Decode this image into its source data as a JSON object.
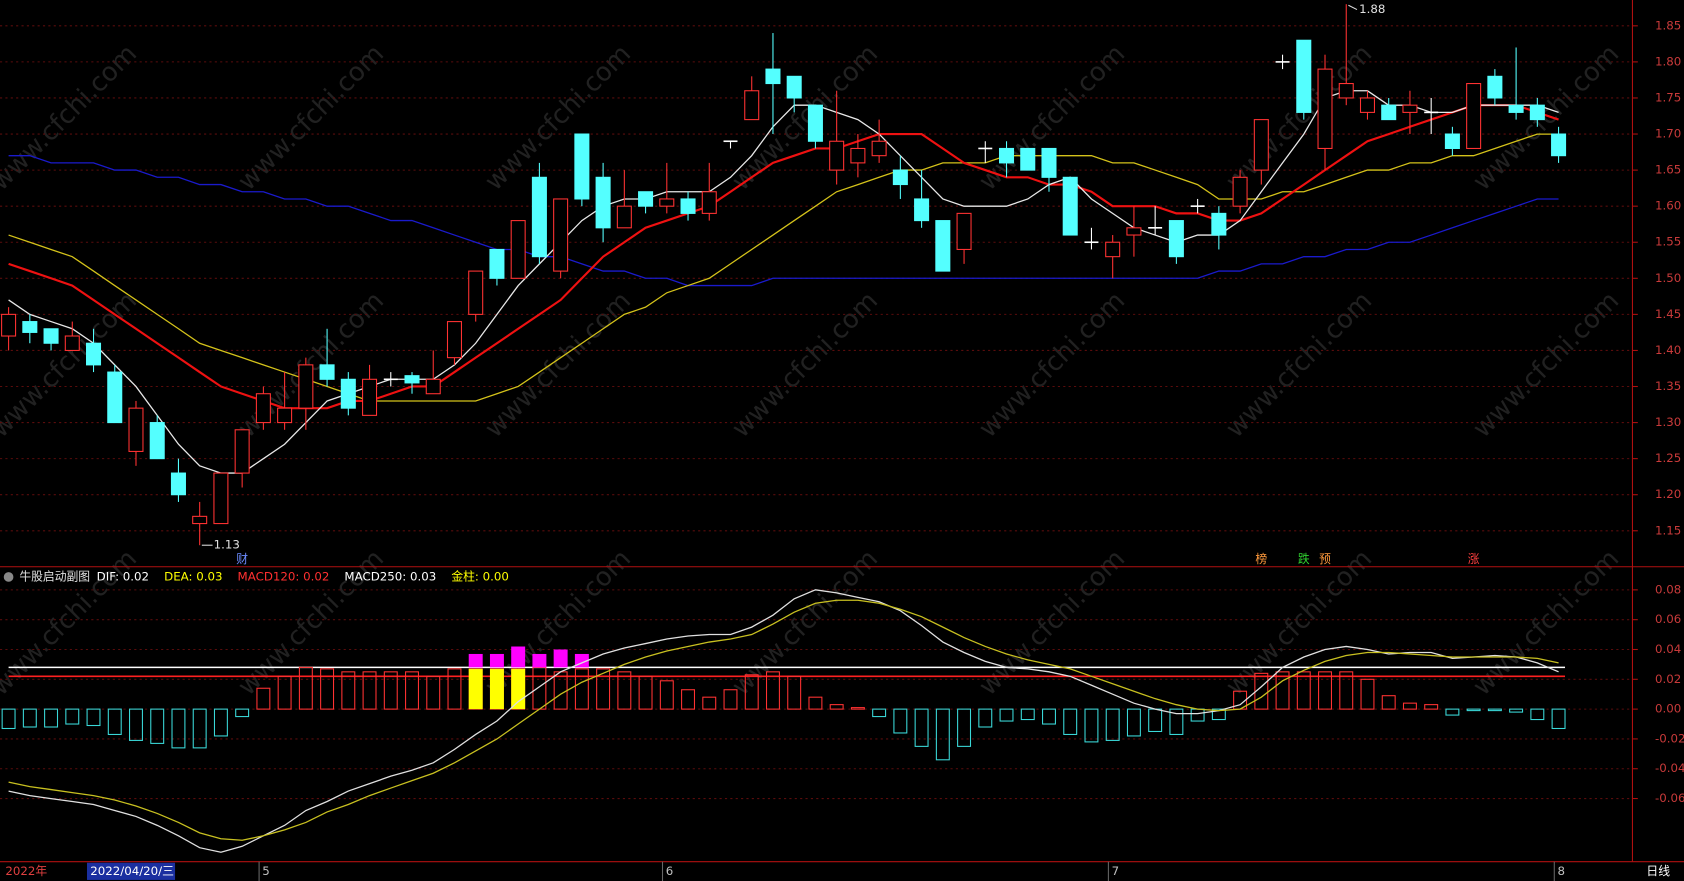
{
  "chart_data": [
    {
      "type": "candlestick",
      "categories": [
        null,
        null,
        null,
        null,
        null,
        null,
        null,
        null,
        null,
        null,
        null,
        null,
        "5",
        null,
        null,
        null,
        null,
        null,
        null,
        null,
        null,
        null,
        null,
        null,
        null,
        null,
        null,
        null,
        null,
        null,
        null,
        "6",
        null,
        null,
        null,
        null,
        null,
        null,
        null,
        null,
        null,
        null,
        null,
        null,
        null,
        null,
        null,
        null,
        null,
        null,
        null,
        null,
        "7",
        null,
        null,
        null,
        null,
        null,
        null,
        null,
        null,
        null,
        null,
        null,
        null,
        null,
        null,
        null,
        null,
        null,
        null,
        null,
        null,
        "8"
      ],
      "open": [
        1.42,
        1.44,
        1.43,
        1.4,
        1.41,
        1.37,
        1.26,
        1.3,
        1.23,
        1.16,
        1.16,
        1.23,
        1.3,
        1.3,
        1.32,
        1.38,
        1.36,
        1.31,
        1.36,
        1.365,
        1.34,
        1.39,
        1.45,
        1.54,
        1.5,
        1.64,
        1.51,
        1.7,
        1.64,
        1.57,
        1.62,
        1.6,
        1.61,
        1.59,
        1.69,
        1.72,
        1.79,
        1.78,
        1.74,
        1.65,
        1.66,
        1.67,
        1.65,
        1.61,
        1.58,
        1.54,
        1.68,
        1.68,
        1.68,
        1.68,
        1.64,
        1.55,
        1.53,
        1.56,
        1.57,
        1.58,
        1.6,
        1.59,
        1.6,
        1.65,
        1.8,
        1.83,
        1.68,
        1.75,
        1.73,
        1.74,
        1.73,
        1.73,
        1.7,
        1.68,
        1.78,
        1.74,
        1.74,
        1.7
      ],
      "high": [
        1.46,
        1.45,
        1.43,
        1.44,
        1.43,
        1.38,
        1.33,
        1.31,
        1.25,
        1.19,
        1.23,
        1.29,
        1.35,
        1.37,
        1.39,
        1.43,
        1.37,
        1.38,
        1.37,
        1.37,
        1.4,
        1.44,
        1.51,
        1.54,
        1.58,
        1.66,
        1.61,
        1.7,
        1.66,
        1.65,
        1.62,
        1.66,
        1.62,
        1.66,
        1.69,
        1.78,
        1.84,
        1.78,
        1.74,
        1.76,
        1.7,
        1.72,
        1.67,
        1.65,
        1.58,
        1.59,
        1.69,
        1.69,
        1.68,
        1.68,
        1.64,
        1.57,
        1.56,
        1.6,
        1.6,
        1.58,
        1.61,
        1.6,
        1.65,
        1.72,
        1.81,
        1.83,
        1.81,
        1.88,
        1.76,
        1.75,
        1.76,
        1.75,
        1.71,
        1.77,
        1.79,
        1.82,
        1.75,
        1.71
      ],
      "low": [
        1.4,
        1.41,
        1.4,
        1.4,
        1.37,
        1.3,
        1.24,
        1.25,
        1.19,
        1.13,
        1.16,
        1.21,
        1.29,
        1.29,
        1.29,
        1.35,
        1.31,
        1.31,
        1.35,
        1.34,
        1.34,
        1.38,
        1.44,
        1.49,
        1.5,
        1.52,
        1.5,
        1.6,
        1.55,
        1.57,
        1.59,
        1.59,
        1.58,
        1.58,
        1.68,
        1.72,
        1.7,
        1.73,
        1.68,
        1.63,
        1.64,
        1.66,
        1.61,
        1.57,
        1.51,
        1.52,
        1.66,
        1.64,
        1.65,
        1.62,
        1.56,
        1.54,
        1.5,
        1.53,
        1.56,
        1.52,
        1.59,
        1.54,
        1.59,
        1.63,
        1.79,
        1.72,
        1.65,
        1.74,
        1.72,
        1.72,
        1.7,
        1.7,
        1.67,
        1.68,
        1.74,
        1.72,
        1.71,
        1.66
      ],
      "close": [
        1.45,
        1.425,
        1.41,
        1.42,
        1.38,
        1.3,
        1.32,
        1.25,
        1.2,
        1.17,
        1.23,
        1.29,
        1.34,
        1.32,
        1.38,
        1.36,
        1.32,
        1.36,
        1.36,
        1.355,
        1.36,
        1.44,
        1.51,
        1.5,
        1.58,
        1.53,
        1.61,
        1.61,
        1.57,
        1.6,
        1.6,
        1.61,
        1.59,
        1.62,
        1.69,
        1.76,
        1.77,
        1.75,
        1.69,
        1.69,
        1.68,
        1.69,
        1.63,
        1.58,
        1.51,
        1.59,
        1.68,
        1.66,
        1.65,
        1.64,
        1.56,
        1.55,
        1.55,
        1.57,
        1.57,
        1.53,
        1.6,
        1.56,
        1.64,
        1.72,
        1.8,
        1.73,
        1.79,
        1.77,
        1.75,
        1.72,
        1.74,
        1.73,
        1.68,
        1.77,
        1.75,
        1.73,
        1.72,
        1.67
      ],
      "up_color": "#ff3232",
      "down_color": "#54ffff",
      "flat_color": "#ffffff",
      "lines": [
        {
          "color": "#1a1acc",
          "values": [
            1.67,
            1.67,
            1.66,
            1.66,
            1.66,
            1.65,
            1.65,
            1.64,
            1.64,
            1.63,
            1.63,
            1.62,
            1.62,
            1.61,
            1.61,
            1.6,
            1.6,
            1.59,
            1.58,
            1.58,
            1.57,
            1.56,
            1.55,
            1.54,
            1.54,
            1.53,
            1.53,
            1.52,
            1.51,
            1.51,
            1.5,
            1.5,
            1.49,
            1.49,
            1.49,
            1.49,
            1.5,
            1.5,
            1.5,
            1.5,
            1.5,
            1.5,
            1.5,
            1.5,
            1.5,
            1.5,
            1.5,
            1.5,
            1.5,
            1.5,
            1.5,
            1.5,
            1.5,
            1.5,
            1.5,
            1.5,
            1.5,
            1.51,
            1.51,
            1.52,
            1.52,
            1.53,
            1.53,
            1.54,
            1.54,
            1.55,
            1.55,
            1.56,
            1.57,
            1.58,
            1.59,
            1.6,
            1.61,
            1.61
          ]
        },
        {
          "color": "#d4c21a",
          "values": [
            1.56,
            1.55,
            1.54,
            1.53,
            1.51,
            1.49,
            1.47,
            1.45,
            1.43,
            1.41,
            1.4,
            1.39,
            1.38,
            1.37,
            1.36,
            1.35,
            1.34,
            1.33,
            1.33,
            1.33,
            1.33,
            1.33,
            1.33,
            1.34,
            1.35,
            1.37,
            1.39,
            1.41,
            1.43,
            1.45,
            1.46,
            1.48,
            1.49,
            1.5,
            1.52,
            1.54,
            1.56,
            1.58,
            1.6,
            1.62,
            1.63,
            1.64,
            1.65,
            1.65,
            1.66,
            1.66,
            1.66,
            1.67,
            1.67,
            1.67,
            1.67,
            1.67,
            1.66,
            1.66,
            1.65,
            1.64,
            1.63,
            1.61,
            1.61,
            1.61,
            1.62,
            1.62,
            1.63,
            1.64,
            1.65,
            1.65,
            1.66,
            1.66,
            1.67,
            1.67,
            1.68,
            1.69,
            1.7,
            1.7
          ]
        },
        {
          "color": "#ee1111",
          "values": [
            1.52,
            1.51,
            1.5,
            1.49,
            1.47,
            1.45,
            1.43,
            1.41,
            1.39,
            1.37,
            1.35,
            1.34,
            1.33,
            1.32,
            1.32,
            1.32,
            1.33,
            1.33,
            1.34,
            1.35,
            1.35,
            1.37,
            1.39,
            1.41,
            1.43,
            1.45,
            1.47,
            1.5,
            1.53,
            1.55,
            1.57,
            1.58,
            1.59,
            1.6,
            1.62,
            1.64,
            1.66,
            1.67,
            1.68,
            1.68,
            1.69,
            1.7,
            1.7,
            1.7,
            1.68,
            1.66,
            1.65,
            1.64,
            1.64,
            1.63,
            1.63,
            1.62,
            1.6,
            1.6,
            1.6,
            1.59,
            1.59,
            1.58,
            1.58,
            1.59,
            1.61,
            1.63,
            1.65,
            1.67,
            1.69,
            1.7,
            1.71,
            1.72,
            1.73,
            1.74,
            1.74,
            1.74,
            1.73,
            1.72
          ],
          "width": 2
        },
        {
          "color": "#e8e8e8",
          "values": [
            1.47,
            1.45,
            1.44,
            1.43,
            1.41,
            1.38,
            1.35,
            1.31,
            1.27,
            1.24,
            1.23,
            1.23,
            1.25,
            1.27,
            1.3,
            1.33,
            1.34,
            1.35,
            1.36,
            1.36,
            1.36,
            1.38,
            1.41,
            1.45,
            1.49,
            1.52,
            1.55,
            1.58,
            1.6,
            1.61,
            1.61,
            1.62,
            1.62,
            1.62,
            1.64,
            1.67,
            1.71,
            1.74,
            1.74,
            1.73,
            1.72,
            1.7,
            1.67,
            1.64,
            1.61,
            1.6,
            1.6,
            1.6,
            1.61,
            1.63,
            1.64,
            1.61,
            1.59,
            1.57,
            1.56,
            1.55,
            1.56,
            1.56,
            1.58,
            1.62,
            1.66,
            1.7,
            1.75,
            1.76,
            1.76,
            1.74,
            1.74,
            1.73,
            1.73,
            1.74,
            1.74,
            1.74,
            1.74,
            1.73
          ]
        }
      ],
      "max_label": 1.88,
      "min_label": 1.13,
      "events": [
        {
          "index": 11,
          "label": "财",
          "color": "#6c8cff"
        },
        {
          "index": 59,
          "label": "榜",
          "color": "#ff9a3c"
        },
        {
          "index": 61,
          "label": "跌",
          "color": "#30d030"
        },
        {
          "index": 62,
          "label": "预",
          "color": "#ff9a3c"
        },
        {
          "index": 69,
          "label": "涨",
          "color": "#ff4040"
        }
      ],
      "ylim": [
        1.1,
        1.88
      ],
      "yticks": [
        1.15,
        {
          "value": 1.2,
          "label": "1.20"
        },
        1.25,
        {
          "value": 1.3,
          "label": "1.30"
        },
        1.35,
        {
          "value": 1.4,
          "label": "1.40"
        },
        1.45,
        {
          "value": 1.5,
          "label": "1.50"
        },
        1.55,
        {
          "value": 1.6,
          "label": "1.60"
        },
        1.65,
        {
          "value": 1.7,
          "label": "1.70"
        },
        1.75,
        {
          "value": 1.8,
          "label": "1.80"
        },
        1.85
      ],
      "grid": true
    },
    {
      "type": "macd",
      "title": "牛股启动副图",
      "indicators": [
        {
          "label": "DIF: 0.02",
          "color": "#ffffff"
        },
        {
          "label": "DEA: 0.03",
          "color": "#ffff00"
        },
        {
          "label": "MACD120: 0.02",
          "color": "#ff3030"
        },
        {
          "label": "MACD250: 0.03",
          "color": "#ffffff"
        },
        {
          "label": "金柱: 0.00",
          "color": "#ffff00"
        }
      ],
      "bars": [
        -0.013,
        -0.012,
        -0.012,
        -0.01,
        -0.011,
        -0.017,
        -0.021,
        -0.023,
        -0.026,
        -0.026,
        -0.018,
        -0.005,
        0.014,
        0.022,
        0.028,
        0.027,
        0.025,
        0.025,
        0.025,
        0.025,
        0.022,
        0.027,
        0.027,
        0.027,
        0.027,
        0.028,
        0.025,
        0.027,
        0.027,
        0.025,
        0.022,
        0.019,
        0.013,
        0.008,
        0.013,
        0.023,
        0.025,
        0.022,
        0.008,
        0.003,
        0.001,
        -0.005,
        -0.016,
        -0.025,
        -0.034,
        -0.025,
        -0.012,
        -0.008,
        -0.007,
        -0.01,
        -0.017,
        -0.022,
        -0.021,
        -0.018,
        -0.015,
        -0.017,
        -0.008,
        -0.007,
        0.012,
        0.024,
        0.025,
        0.025,
        0.025,
        0.025,
        0.02,
        0.009,
        0.004,
        0.003,
        -0.004,
        -0.001,
        -0.001,
        -0.002,
        -0.007,
        -0.013
      ],
      "pos_color": "#ff3232",
      "neg_color": "#3ad8d8",
      "gold": [
        null,
        null,
        null,
        null,
        null,
        null,
        null,
        null,
        null,
        null,
        null,
        null,
        null,
        null,
        null,
        null,
        null,
        null,
        null,
        null,
        null,
        null,
        0.027,
        0.027,
        0.027,
        null,
        null,
        null,
        null,
        null,
        null,
        null,
        null,
        null,
        null,
        null,
        null,
        null,
        null,
        null,
        null,
        null,
        null,
        null,
        null,
        null,
        null,
        null,
        null,
        null,
        null,
        null,
        null,
        null,
        null,
        null,
        null,
        null,
        null,
        null,
        null,
        null,
        null,
        null,
        null,
        null,
        null,
        null,
        null,
        null,
        null,
        null,
        null,
        null
      ],
      "gold_color": "#ffff00",
      "magenta": [
        null,
        null,
        null,
        null,
        null,
        null,
        null,
        null,
        null,
        null,
        null,
        null,
        null,
        null,
        null,
        null,
        null,
        null,
        null,
        null,
        null,
        null,
        0.037,
        0.037,
        0.042,
        0.037,
        0.04,
        0.037,
        null,
        null,
        null,
        null,
        null,
        null,
        null,
        null,
        null,
        null,
        null,
        null,
        null,
        null,
        null,
        null,
        null,
        null,
        null,
        null,
        null,
        null,
        null,
        null,
        null,
        null,
        null,
        null,
        null,
        null,
        null,
        null,
        null,
        null,
        null,
        null,
        null,
        null,
        null,
        null,
        null,
        null,
        null,
        null,
        null,
        null
      ],
      "magenta_color": "#ff00ff",
      "ref_lines": [
        {
          "value": 0.028,
          "color": "#ffffff"
        },
        {
          "value": 0.022,
          "color": "#ff2020"
        }
      ],
      "lines": [
        {
          "color": "#e0e0e0",
          "values": [
            -0.055,
            -0.058,
            -0.06,
            -0.062,
            -0.064,
            -0.068,
            -0.072,
            -0.078,
            -0.085,
            -0.093,
            -0.096,
            -0.092,
            -0.085,
            -0.078,
            -0.068,
            -0.062,
            -0.055,
            -0.05,
            -0.045,
            -0.041,
            -0.036,
            -0.027,
            -0.017,
            -0.008,
            0.005,
            0.015,
            0.025,
            0.031,
            0.037,
            0.041,
            0.044,
            0.047,
            0.049,
            0.05,
            0.05,
            0.055,
            0.063,
            0.074,
            0.08,
            0.078,
            0.075,
            0.072,
            0.066,
            0.056,
            0.045,
            0.038,
            0.032,
            0.028,
            0.027,
            0.025,
            0.022,
            0.016,
            0.01,
            0.004,
            0,
            -0.003,
            -0.003,
            -0.001,
            0.003,
            0.015,
            0.028,
            0.035,
            0.04,
            0.042,
            0.04,
            0.037,
            0.038,
            0.038,
            0.034,
            0.035,
            0.036,
            0.035,
            0.031,
            0.025
          ]
        },
        {
          "color": "#c8c020",
          "values": [
            -0.049,
            -0.052,
            -0.054,
            -0.056,
            -0.058,
            -0.061,
            -0.065,
            -0.07,
            -0.076,
            -0.083,
            -0.087,
            -0.088,
            -0.085,
            -0.081,
            -0.076,
            -0.069,
            -0.064,
            -0.058,
            -0.053,
            -0.048,
            -0.043,
            -0.036,
            -0.028,
            -0.02,
            -0.01,
            0,
            0.01,
            0.018,
            0.024,
            0.03,
            0.035,
            0.039,
            0.042,
            0.045,
            0.047,
            0.05,
            0.057,
            0.065,
            0.071,
            0.073,
            0.073,
            0.071,
            0.067,
            0.062,
            0.055,
            0.048,
            0.042,
            0.037,
            0.033,
            0.03,
            0.027,
            0.022,
            0.017,
            0.012,
            0.007,
            0.003,
            0,
            -0.001,
            0,
            0.008,
            0.019,
            0.026,
            0.032,
            0.036,
            0.038,
            0.038,
            0.037,
            0.036,
            0.035,
            0.035,
            0.035,
            0.035,
            0.034,
            0.031
          ]
        }
      ],
      "ylim": [
        -0.1,
        0.094
      ],
      "yticks": [
        0.08,
        0.06,
        0.04,
        0.02,
        {
          "value": 0,
          "label": "0.00"
        },
        -0.02,
        -0.04,
        -0.06
      ],
      "grid": true
    }
  ],
  "footer": {
    "year": "2022年",
    "cursor_date": "2022/04/20/三",
    "period": "日线"
  },
  "watermark": "www.cfchi.com"
}
